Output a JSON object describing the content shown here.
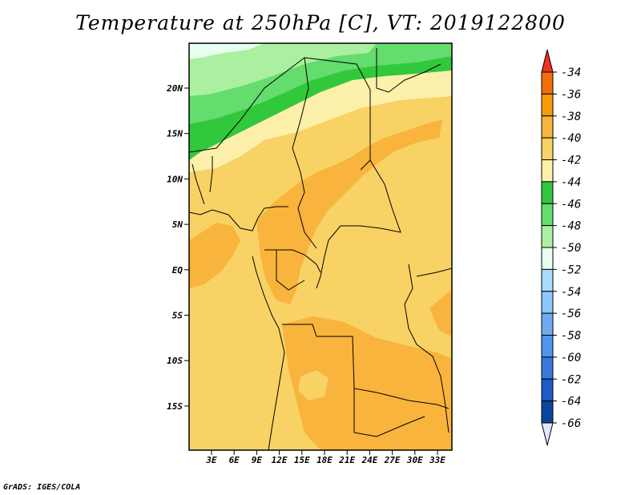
{
  "title": "Temperature at 250hPa [C], VT: 2019122800",
  "credit": "GrADS: IGES/COLA",
  "map": {
    "lon_labels": [
      "3E",
      "6E",
      "9E",
      "12E",
      "15E",
      "18E",
      "21E",
      "24E",
      "27E",
      "30E",
      "33E"
    ],
    "lat_labels": [
      "20N",
      "15N",
      "10N",
      "5N",
      "EQ",
      "5S",
      "10S",
      "15S"
    ]
  },
  "colorbar": {
    "levels": [
      "-34",
      "-36",
      "-38",
      "-40",
      "-42",
      "-44",
      "-46",
      "-48",
      "-50",
      "-52",
      "-54",
      "-56",
      "-58",
      "-60",
      "-62",
      "-64",
      "-66"
    ],
    "colors": [
      "#f0321e",
      "#f56e0a",
      "#f89b0a",
      "#f8b43c",
      "#f8d264",
      "#fdf0aa",
      "#32c83c",
      "#64dc6e",
      "#aaf0a0",
      "#e6fff0",
      "#aadcff",
      "#8cc8ff",
      "#6eaaf0",
      "#5096f0",
      "#3c78dc",
      "#1e5ac8",
      "#0a46a0",
      "#0a1478",
      "#e6e6ff"
    ]
  }
}
